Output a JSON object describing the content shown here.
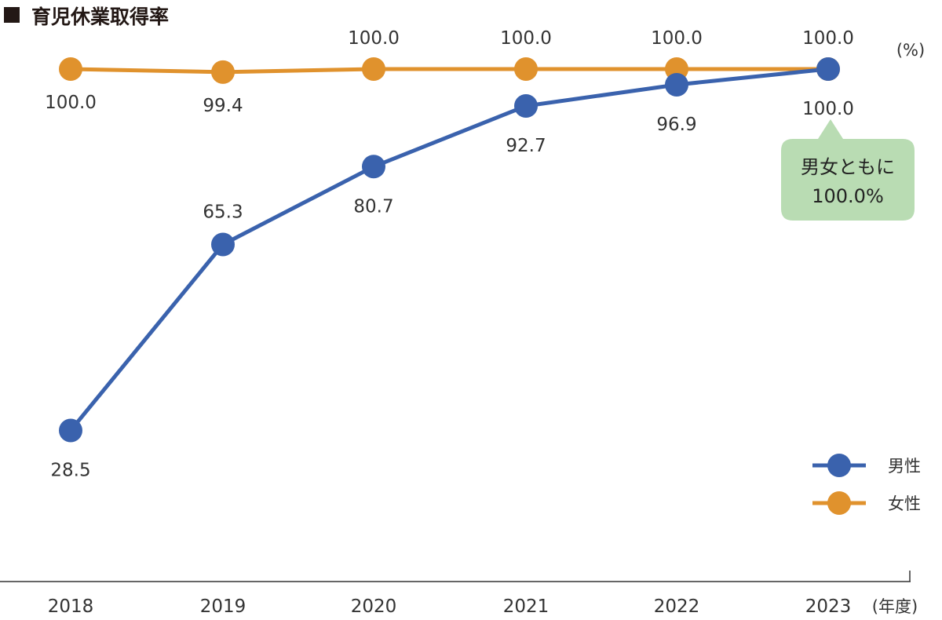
{
  "chart_data": {
    "type": "line",
    "title": "育児休業取得率",
    "unit_label": "(%)",
    "xlabel": "(年度)",
    "categories": [
      "2018",
      "2019",
      "2020",
      "2021",
      "2022",
      "2023"
    ],
    "ylim": [
      0,
      100
    ],
    "series": [
      {
        "name": "男性",
        "color": "#3a62ad",
        "values": [
          28.5,
          65.3,
          80.7,
          92.7,
          96.9,
          100.0
        ],
        "labels": [
          "28.5",
          "65.3",
          "80.7",
          "92.7",
          "96.9",
          "100.0"
        ]
      },
      {
        "name": "女性",
        "color": "#e0922d",
        "values": [
          100.0,
          99.4,
          100.0,
          100.0,
          100.0,
          100.0
        ],
        "labels": [
          "100.0",
          "99.4",
          "100.0",
          "100.0",
          "100.0",
          "100.0"
        ]
      }
    ],
    "legend": "bottom-right",
    "grid": false,
    "callout": {
      "line1": "男女ともに",
      "line2": "100.0%",
      "color": "#b9dcb3"
    }
  }
}
